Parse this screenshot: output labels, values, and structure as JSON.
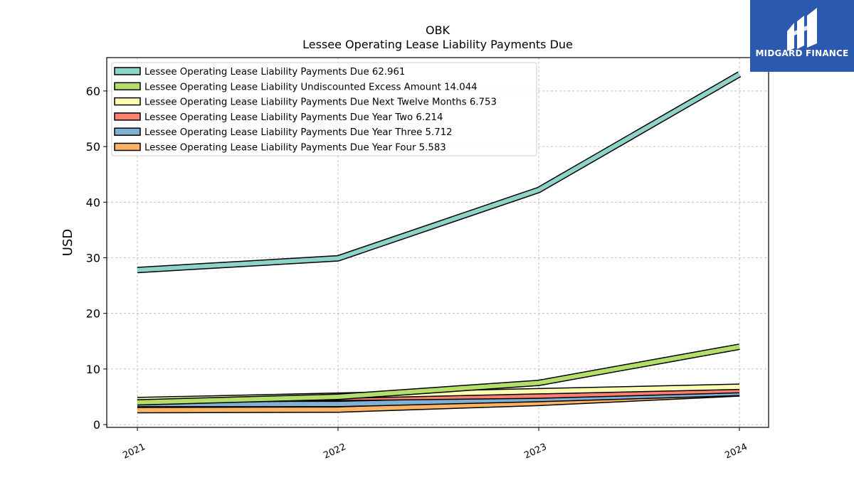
{
  "chart_data": {
    "type": "line",
    "title": "OBK",
    "subtitle": "Lessee Operating Lease Liability Payments Due",
    "xlabel": "",
    "ylabel": "USD",
    "categories": [
      "2021",
      "2022",
      "2023",
      "2024"
    ],
    "ylim": [
      -0.5,
      66
    ],
    "yticks": [
      0,
      10,
      20,
      30,
      40,
      50,
      60
    ],
    "grid": true,
    "legend_position": "top-left",
    "series": [
      {
        "name": "Lessee Operating Lease Liability Payments Due",
        "legend_value": "62.961",
        "color": "#8dd3c7",
        "values": [
          27.8,
          29.9,
          42.2,
          63.0
        ]
      },
      {
        "name": "Lessee Operating Lease Liability Undiscounted Excess Amount",
        "legend_value": "14.044",
        "color": "#b3de69",
        "values": [
          4.0,
          5.0,
          7.5,
          14.0
        ]
      },
      {
        "name": "Lessee Operating Lease Liability Payments Due Next Twelve Months",
        "legend_value": "6.753",
        "color": "#ffffb3",
        "values": [
          4.4,
          5.2,
          6.0,
          6.8
        ]
      },
      {
        "name": "Lessee Operating Lease Liability Payments Due Year Two",
        "legend_value": "6.214",
        "color": "#fb8072",
        "values": [
          4.3,
          4.8,
          5.2,
          6.2
        ]
      },
      {
        "name": "Lessee Operating Lease Liability Payments Due Year Three",
        "legend_value": "5.712",
        "color": "#80b1d3",
        "values": [
          3.7,
          3.7,
          4.6,
          5.7
        ]
      },
      {
        "name": "Lessee Operating Lease Liability Payments Due Year Four",
        "legend_value": "5.583",
        "color": "#fdb462",
        "values": [
          2.6,
          2.7,
          3.9,
          5.6
        ]
      }
    ]
  },
  "logo": {
    "text": "MIDGARD FINANCE",
    "background": "#2b59b0"
  }
}
